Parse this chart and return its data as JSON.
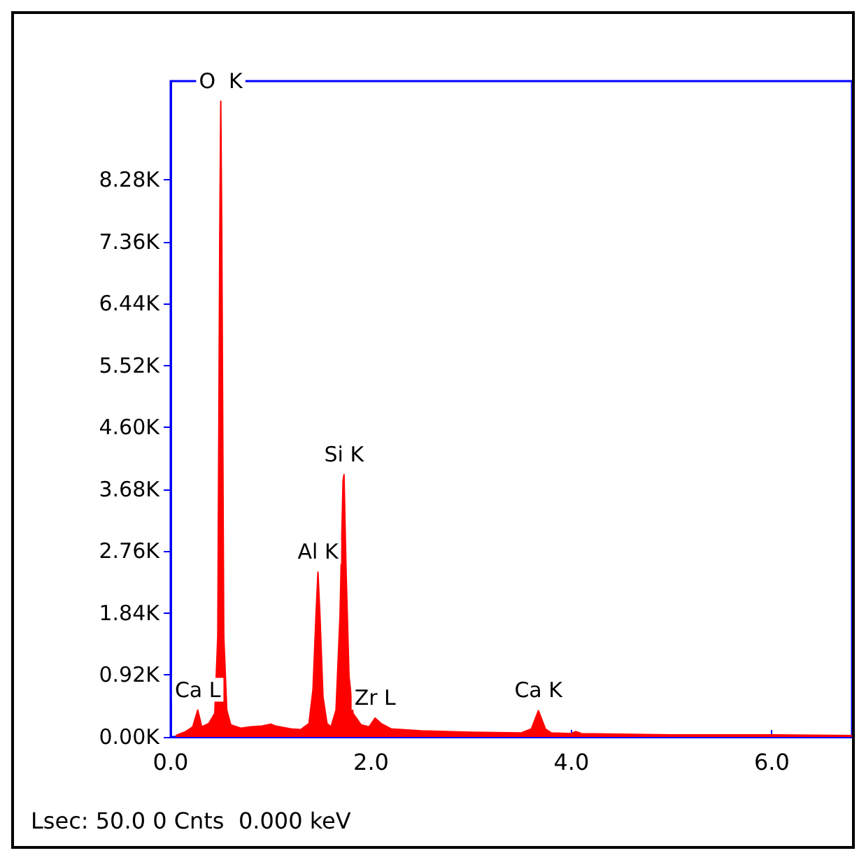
{
  "chart_data": {
    "type": "area",
    "color": "#ff0000",
    "x": [
      0.05,
      0.15,
      0.22,
      0.27,
      0.31,
      0.38,
      0.44,
      0.47,
      0.49,
      0.5,
      0.51,
      0.53,
      0.56,
      0.6,
      0.7,
      0.8,
      0.9,
      1.0,
      1.05,
      1.2,
      1.3,
      1.38,
      1.42,
      1.45,
      1.47,
      1.49,
      1.52,
      1.56,
      1.6,
      1.65,
      1.69,
      1.72,
      1.73,
      1.75,
      1.78,
      1.82,
      1.9,
      1.98,
      2.04,
      2.1,
      2.2,
      2.5,
      3.0,
      3.5,
      3.6,
      3.67,
      3.74,
      3.8,
      4.0,
      4.04,
      4.1,
      5.0,
      6.0,
      6.8
    ],
    "values": [
      20,
      80,
      150,
      400,
      150,
      200,
      350,
      1500,
      7500,
      9450,
      7500,
      1500,
      400,
      180,
      130,
      150,
      160,
      190,
      160,
      120,
      110,
      200,
      700,
      1800,
      2450,
      1800,
      600,
      200,
      150,
      400,
      1800,
      3800,
      3900,
      2500,
      900,
      350,
      180,
      150,
      280,
      200,
      120,
      90,
      70,
      60,
      120,
      390,
      120,
      60,
      50,
      80,
      50,
      30,
      30,
      20
    ],
    "xlim": [
      0,
      6.8
    ],
    "xticks": [
      {
        "value": 0,
        "label": "0.0"
      },
      {
        "value": 2,
        "label": "2.0"
      },
      {
        "value": 4,
        "label": "4.0"
      },
      {
        "value": 6,
        "label": "6.0"
      }
    ],
    "ylim": [
      0,
      9750
    ],
    "yticks": [
      {
        "value": 0,
        "label": "0.00K"
      },
      {
        "value": 920,
        "label": "0.92K"
      },
      {
        "value": 1840,
        "label": "1.84K"
      },
      {
        "value": 2760,
        "label": "2.76K"
      },
      {
        "value": 3680,
        "label": "3.68K"
      },
      {
        "value": 4600,
        "label": "4.60K"
      },
      {
        "value": 5520,
        "label": "5.52K"
      },
      {
        "value": 6440,
        "label": "6.44K"
      },
      {
        "value": 7360,
        "label": "7.36K"
      },
      {
        "value": 8280,
        "label": "8.28K"
      }
    ],
    "grid": false,
    "marker": "none",
    "annotations": [
      {
        "text": "O  K",
        "x": 0.5,
        "y": 9450
      },
      {
        "text": "Si K",
        "x": 1.73,
        "y": 3900
      },
      {
        "text": "Al K",
        "x": 1.47,
        "y": 2450
      },
      {
        "text": "Ca L",
        "x": 0.27,
        "y": 400
      },
      {
        "text": "Zr L",
        "x": 2.04,
        "y": 280
      },
      {
        "text": "Ca K",
        "x": 3.67,
        "y": 390
      },
      "Lsec: 50.0 0 Cnts  0.000 keV"
    ]
  }
}
